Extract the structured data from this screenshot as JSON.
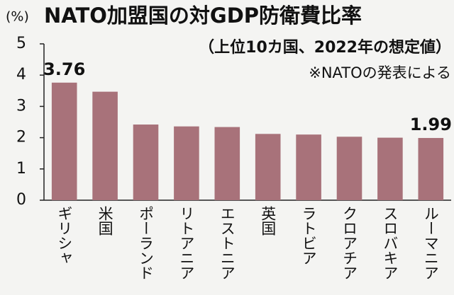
{
  "chart_data": {
    "type": "bar",
    "title": "NATO加盟国の対GDP防衛費比率",
    "subtitle": "（上位10カ国、2022年の想定値）",
    "note": "※NATOの発表による",
    "ylabel": "(%)",
    "categories": [
      "ギリシャ",
      "米国",
      "ポーランド",
      "リトアニア",
      "エストニア",
      "英国",
      "ラトビア",
      "クロアチア",
      "スロバキア",
      "ルーマニア"
    ],
    "values": [
      3.76,
      3.47,
      2.42,
      2.36,
      2.34,
      2.12,
      2.1,
      2.03,
      2.0,
      1.99
    ],
    "labeled": [
      0,
      9
    ],
    "color": "#a8727a",
    "ylim": [
      0,
      5
    ],
    "yticks": [
      0,
      1,
      2,
      3,
      4,
      5
    ]
  }
}
